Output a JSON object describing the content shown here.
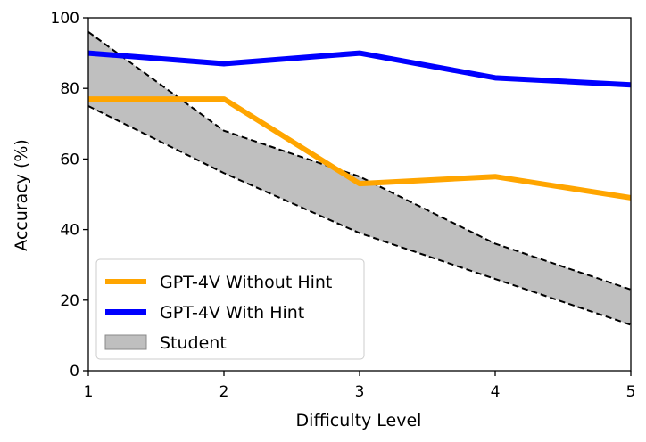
{
  "chart_data": {
    "type": "line",
    "xlabel": "Difficulty Level",
    "ylabel": "Accuracy (%)",
    "xlim": [
      1,
      5
    ],
    "ylim": [
      0,
      100
    ],
    "xticks": [
      1,
      2,
      3,
      4,
      5
    ],
    "yticks": [
      0,
      20,
      40,
      60,
      80,
      100
    ],
    "grid": false,
    "legend_position": "lower-left",
    "x": [
      1,
      2,
      3,
      4,
      5
    ],
    "series": [
      {
        "name": "GPT-4V Without Hint",
        "type": "line",
        "color": "#FFA500",
        "values": [
          77,
          77,
          53,
          55,
          49
        ]
      },
      {
        "name": "GPT-4V With Hint",
        "type": "line",
        "color": "#0000FF",
        "values": [
          90,
          87,
          90,
          83,
          81
        ]
      }
    ],
    "band": {
      "name": "Student",
      "type": "area",
      "fill_color": "#BFBFBF",
      "upper": [
        96,
        68,
        55,
        36,
        23
      ],
      "lower": [
        75,
        56,
        39,
        26,
        13
      ]
    }
  }
}
